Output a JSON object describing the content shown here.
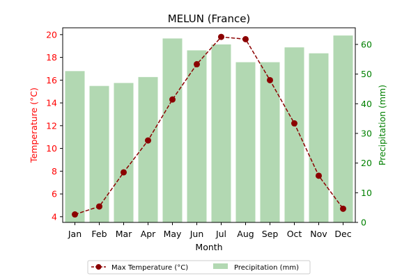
{
  "chart_data": {
    "type": "bar+line",
    "title": "MELUN (France)",
    "xlabel": "Month",
    "ylabel_left": "Temperature (°C)",
    "ylabel_right": "Precipitation (mm)",
    "categories": [
      "Jan",
      "Feb",
      "Mar",
      "Apr",
      "May",
      "Jun",
      "Jul",
      "Aug",
      "Sep",
      "Oct",
      "Nov",
      "Dec"
    ],
    "ylim_left": [
      3.5,
      20.6
    ],
    "yticks_left": [
      4,
      6,
      8,
      10,
      12,
      14,
      16,
      18,
      20
    ],
    "ylim_right": [
      0,
      65.6
    ],
    "yticks_right": [
      0,
      10,
      20,
      30,
      40,
      50,
      60
    ],
    "grid": false,
    "legend_position": "bottom-center",
    "series": [
      {
        "name": "Max Temperature (°C)",
        "type": "line",
        "axis": "left",
        "color": "#8b0000",
        "values": [
          4.2,
          4.9,
          7.9,
          10.7,
          14.3,
          17.4,
          19.8,
          19.6,
          16.0,
          12.2,
          7.6,
          4.7
        ]
      },
      {
        "name": "Precipitation (mm)",
        "type": "bar",
        "axis": "right",
        "color": "#b2d8b2",
        "values": [
          51,
          46,
          47,
          49,
          62,
          58,
          60,
          54,
          54,
          59,
          57,
          63
        ]
      }
    ],
    "colors": {
      "left_axis": "#ff0000",
      "right_axis": "#008000"
    }
  }
}
